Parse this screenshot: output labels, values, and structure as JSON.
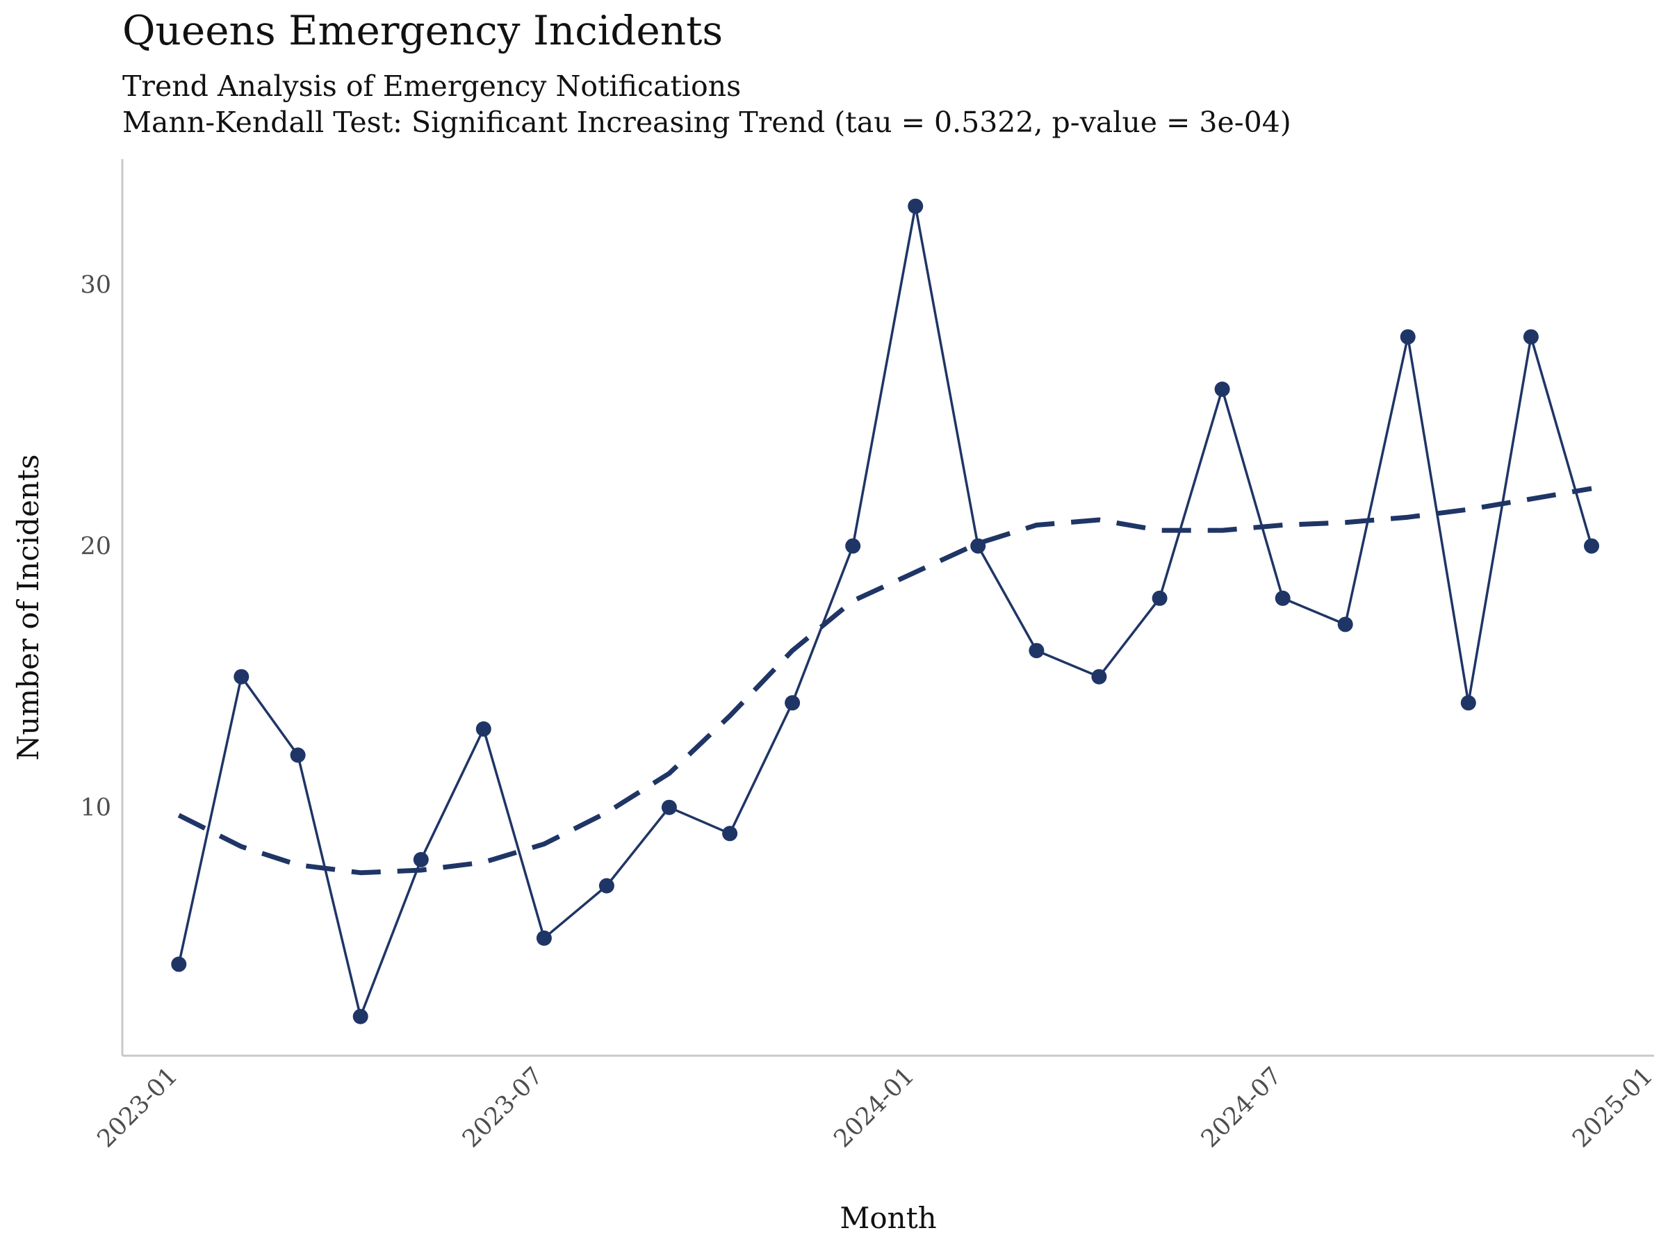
{
  "chart_data": {
    "type": "line",
    "title": "Queens Emergency Incidents",
    "subtitle": [
      "Trend Analysis of Emergency Notifications",
      "Mann-Kendall Test: Significant Increasing Trend (tau = 0.5322, p-value = 3e-04)"
    ],
    "xlabel": "Month",
    "ylabel": "Number of Incidents",
    "ylim": [
      0.5,
      34.8
    ],
    "xlim": [
      "2022-12-04",
      "2025-01-01"
    ],
    "x_ticks": [
      "2023-01",
      "2023-07",
      "2024-01",
      "2024-07",
      "2025-01"
    ],
    "y_ticks": [
      10,
      20,
      30
    ],
    "grid": false,
    "colors": {
      "series": "#1f3566",
      "axis": "#c8c8c8"
    },
    "series": [
      {
        "style": "solid line with points",
        "x": [
          "2023-01-01",
          "2023-02-01",
          "2023-03-01",
          "2023-04-01",
          "2023-05-01",
          "2023-06-01",
          "2023-07-01",
          "2023-08-01",
          "2023-09-01",
          "2023-10-01",
          "2023-11-01",
          "2023-12-01",
          "2024-01-01",
          "2024-02-01",
          "2024-03-01",
          "2024-04-01",
          "2024-05-01",
          "2024-06-01",
          "2024-07-01",
          "2024-08-01",
          "2024-09-01",
          "2024-10-01",
          "2024-11-01",
          "2024-12-01"
        ],
        "values": [
          4,
          15,
          12,
          2,
          8,
          13,
          5,
          7,
          10,
          9,
          14,
          20,
          33,
          20,
          16,
          15,
          18,
          26,
          18,
          17,
          28,
          14,
          28,
          20
        ]
      },
      {
        "style": "dashed smooth trend",
        "x": [
          "2023-01-01",
          "2023-02-01",
          "2023-03-01",
          "2023-04-01",
          "2023-05-01",
          "2023-06-01",
          "2023-07-01",
          "2023-08-01",
          "2023-09-01",
          "2023-10-01",
          "2023-11-01",
          "2023-12-01",
          "2024-01-01",
          "2024-02-01",
          "2024-03-01",
          "2024-04-01",
          "2024-05-01",
          "2024-06-01",
          "2024-07-01",
          "2024-08-01",
          "2024-09-01",
          "2024-10-01",
          "2024-11-01",
          "2024-12-01"
        ],
        "values": [
          9.7,
          8.5,
          7.8,
          7.5,
          7.6,
          7.9,
          8.6,
          9.8,
          11.3,
          13.5,
          16.0,
          17.9,
          19.0,
          20.1,
          20.8,
          21.0,
          20.6,
          20.6,
          20.8,
          20.9,
          21.1,
          21.4,
          21.8,
          22.2
        ]
      }
    ]
  }
}
